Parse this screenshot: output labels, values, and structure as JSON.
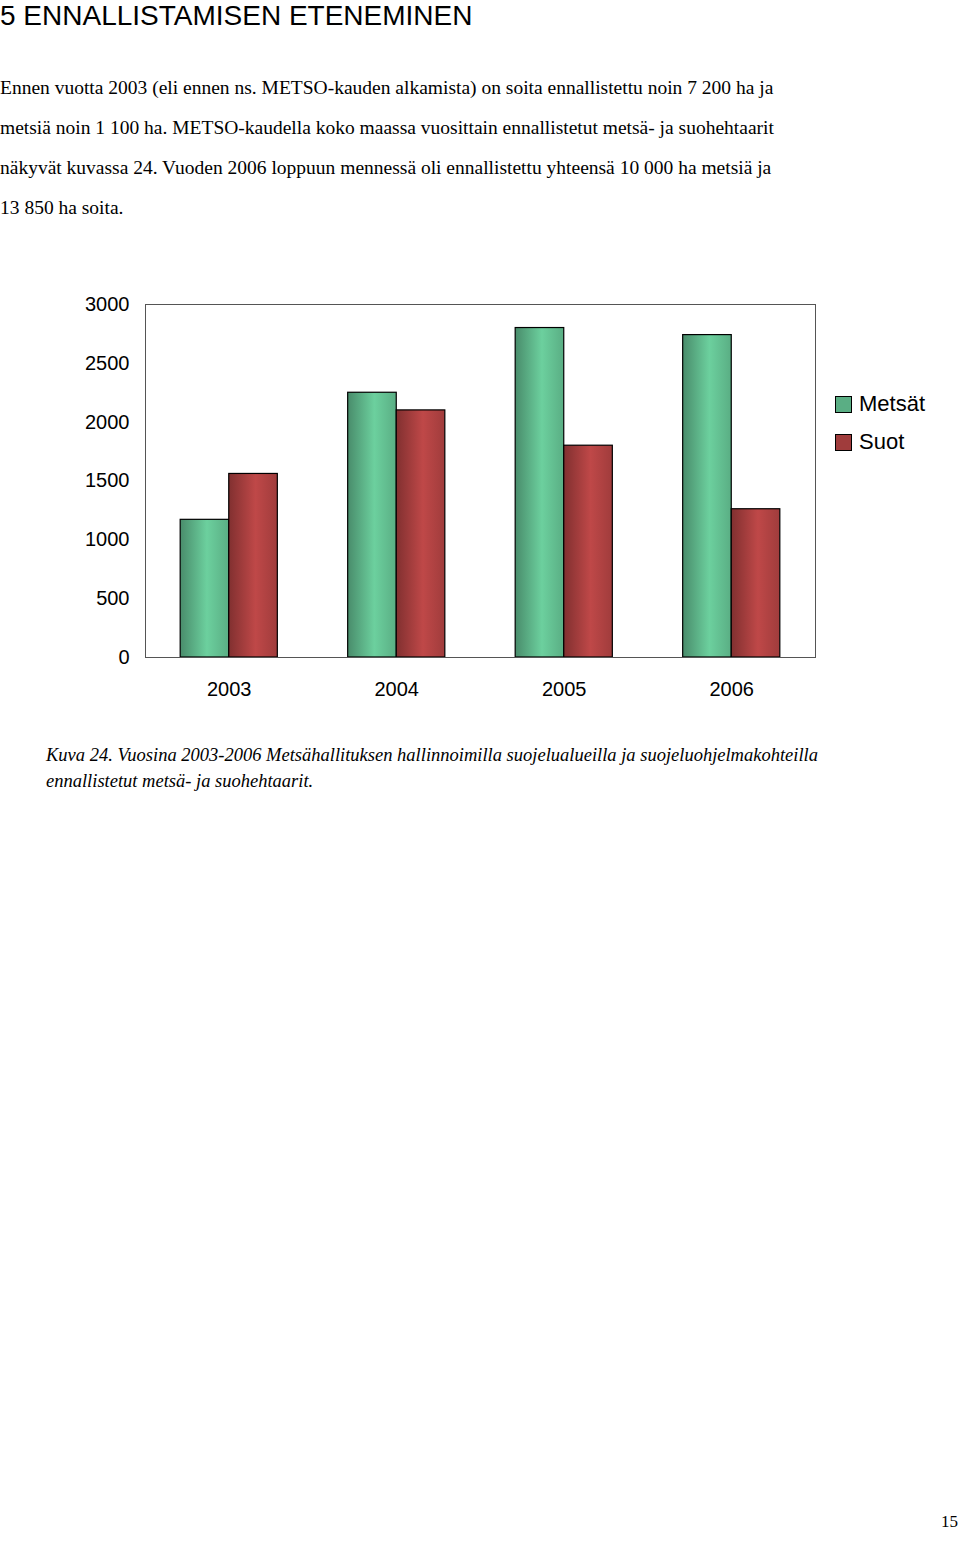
{
  "heading": "5 ENNALLISTAMISEN ETENEMINEN",
  "paragraph_lines": [
    "Ennen vuotta 2003 (eli ennen ns. METSO-kauden alkamista) on soita ennallistettu noin 7 200 ha ja",
    "metsiä noin 1 100 ha. METSO-kaudella koko maassa vuosittain ennallistetut metsä- ja suohehtaarit",
    "näkyvät kuvassa 24. Vuoden 2006 loppuun mennessä oli ennallistettu yhteensä 10 000 ha metsiä ja",
    "13 850 ha soita."
  ],
  "chart_data": {
    "type": "bar",
    "categories": [
      "2003",
      "2004",
      "2005",
      "2006"
    ],
    "series": [
      {
        "name": "Metsät",
        "color": "#5aae84",
        "values": [
          1170,
          2250,
          2800,
          2740
        ]
      },
      {
        "name": "Suot",
        "color": "#a03c3c",
        "values": [
          1560,
          2100,
          1800,
          1260
        ]
      }
    ],
    "ylim": [
      0,
      3000
    ],
    "yticks": [
      0,
      500,
      1000,
      1500,
      2000,
      2500,
      3000
    ],
    "grid": false,
    "legend": "right"
  },
  "caption_lines": [
    "Kuva 24. Vuosina 2003-2006 Metsähallituksen hallinnoimilla suojelualueilla ja suojeluohjelmakohteilla",
    "ennallistetut metsä- ja suohehtaarit."
  ],
  "page_number": "15"
}
